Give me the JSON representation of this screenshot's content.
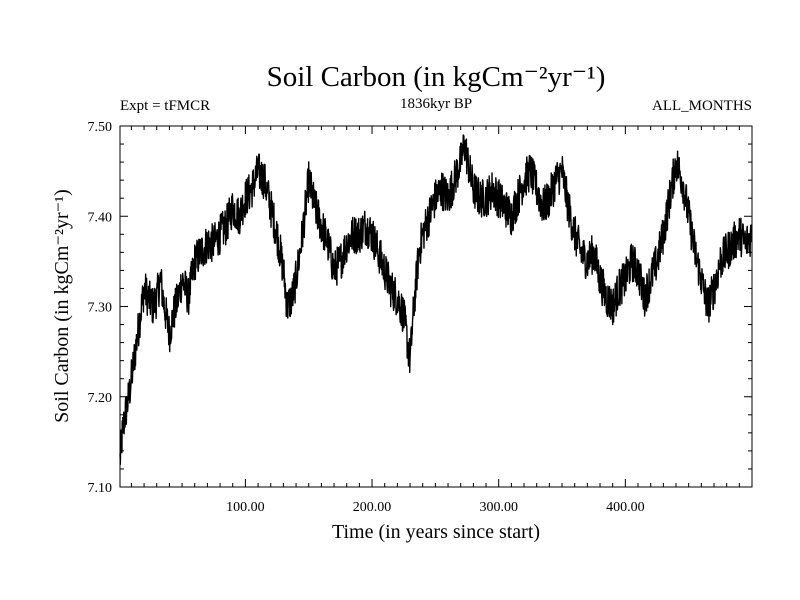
{
  "chart_data": {
    "type": "line",
    "title": "Soil Carbon",
    "title_unit_html": "(in kgCm⁻²yr⁻¹)",
    "subtitle": "1836kyr BP",
    "left_label": "Expt = tFMCR",
    "right_label": "ALL_MONTHS",
    "xlabel": "Time (in years since start)",
    "ylabel": "Soil Carbon (in kgCm⁻²yr⁻¹)",
    "xlim": [
      1,
      500
    ],
    "ylim": [
      7.1,
      7.5
    ],
    "x_ticks": [
      100,
      200,
      300,
      400
    ],
    "x_tick_labels": [
      "100.00",
      "200.00",
      "300.00",
      "400.00"
    ],
    "y_ticks": [
      7.1,
      7.2,
      7.3,
      7.4,
      7.5
    ],
    "y_tick_labels": [
      "7.10",
      "7.20",
      "7.30",
      "7.40",
      "7.50"
    ],
    "series": [
      {
        "name": "Soil Carbon",
        "color": "#000000",
        "x": [
          1,
          3,
          5,
          8,
          12,
          15,
          18,
          20,
          23,
          27,
          30,
          33,
          36,
          40,
          43,
          47,
          50,
          55,
          60,
          65,
          70,
          75,
          80,
          85,
          90,
          95,
          100,
          105,
          110,
          115,
          120,
          125,
          130,
          133,
          137,
          140,
          145,
          150,
          155,
          160,
          165,
          170,
          175,
          180,
          185,
          190,
          195,
          200,
          205,
          210,
          215,
          220,
          225,
          230,
          233,
          237,
          240,
          245,
          250,
          255,
          260,
          265,
          270,
          273,
          277,
          280,
          285,
          290,
          295,
          300,
          305,
          310,
          315,
          320,
          325,
          330,
          335,
          340,
          345,
          350,
          355,
          360,
          365,
          370,
          375,
          380,
          385,
          390,
          395,
          400,
          405,
          410,
          415,
          420,
          425,
          430,
          435,
          440,
          445,
          450,
          455,
          460,
          465,
          470,
          475,
          480,
          485,
          490,
          495,
          500
        ],
        "values": [
          7.13,
          7.16,
          7.18,
          7.2,
          7.24,
          7.27,
          7.3,
          7.32,
          7.31,
          7.3,
          7.31,
          7.33,
          7.3,
          7.27,
          7.29,
          7.31,
          7.33,
          7.31,
          7.35,
          7.36,
          7.37,
          7.37,
          7.38,
          7.39,
          7.41,
          7.4,
          7.42,
          7.43,
          7.45,
          7.44,
          7.41,
          7.38,
          7.34,
          7.3,
          7.31,
          7.33,
          7.38,
          7.44,
          7.41,
          7.39,
          7.37,
          7.34,
          7.35,
          7.37,
          7.38,
          7.38,
          7.39,
          7.38,
          7.36,
          7.34,
          7.32,
          7.31,
          7.29,
          7.24,
          7.3,
          7.36,
          7.38,
          7.4,
          7.42,
          7.43,
          7.42,
          7.44,
          7.46,
          7.48,
          7.45,
          7.43,
          7.42,
          7.42,
          7.43,
          7.42,
          7.41,
          7.4,
          7.42,
          7.44,
          7.45,
          7.43,
          7.41,
          7.42,
          7.44,
          7.45,
          7.41,
          7.38,
          7.36,
          7.35,
          7.36,
          7.33,
          7.31,
          7.3,
          7.32,
          7.33,
          7.35,
          7.34,
          7.31,
          7.33,
          7.35,
          7.38,
          7.42,
          7.46,
          7.44,
          7.4,
          7.36,
          7.33,
          7.3,
          7.32,
          7.35,
          7.36,
          7.37,
          7.38,
          7.37,
          7.38
        ],
        "noise_amplitude": 0.022
      }
    ]
  }
}
